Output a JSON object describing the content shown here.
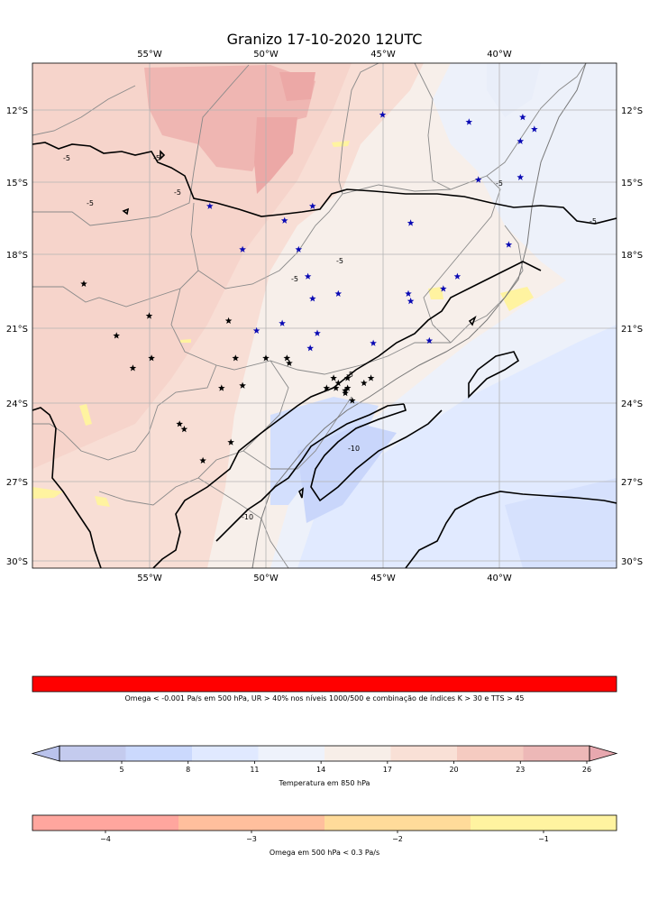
{
  "title": "Granizo 17-10-2020 12UTC",
  "map": {
    "lon_ticks": [
      "55°W",
      "50°W",
      "45°W",
      "40°W"
    ],
    "lat_ticks": [
      "12°S",
      "15°S",
      "18°S",
      "21°S",
      "24°S",
      "27°S",
      "30°S"
    ],
    "contour_labels": [
      "-5",
      "-5",
      "-5",
      "-5",
      "-5",
      "-5",
      "-5",
      "-5",
      "-10",
      "-10",
      "-5"
    ],
    "black_stars": [
      [
        -57.8,
        -19.2
      ],
      [
        -55.0,
        -20.5
      ],
      [
        -56.4,
        -21.3
      ],
      [
        -55.7,
        -22.6
      ],
      [
        -54.9,
        -22.2
      ],
      [
        -53.7,
        -24.8
      ],
      [
        -53.5,
        -25.0
      ],
      [
        -51.9,
        -23.4
      ],
      [
        -51.3,
        -22.2
      ],
      [
        -50.0,
        -22.2
      ],
      [
        -49.1,
        -22.2
      ],
      [
        -49.0,
        -22.4
      ],
      [
        -51.0,
        -23.3
      ],
      [
        -51.6,
        -20.7
      ],
      [
        -51.5,
        -25.5
      ],
      [
        -52.7,
        -26.2
      ],
      [
        -47.4,
        -23.4
      ],
      [
        -47.1,
        -23.0
      ],
      [
        -46.9,
        -23.2
      ],
      [
        -46.6,
        -23.5
      ],
      [
        -46.5,
        -23.4
      ],
      [
        -46.5,
        -23.0
      ],
      [
        -46.3,
        -23.9
      ],
      [
        -45.8,
        -23.2
      ],
      [
        -45.5,
        -23.0
      ],
      [
        -47.0,
        -23.4
      ],
      [
        -46.6,
        -23.6
      ]
    ],
    "blue_stars": [
      [
        -45.0,
        -12.2
      ],
      [
        -41.3,
        -12.5
      ],
      [
        -39.0,
        -12.3
      ],
      [
        -38.5,
        -12.8
      ],
      [
        -39.1,
        -13.3
      ],
      [
        -40.9,
        -14.9
      ],
      [
        -39.1,
        -14.8
      ],
      [
        -52.4,
        -16.0
      ],
      [
        -48.0,
        -16.0
      ],
      [
        -49.2,
        -16.6
      ],
      [
        -43.8,
        -16.7
      ],
      [
        -39.6,
        -17.6
      ],
      [
        -51.0,
        -17.8
      ],
      [
        -48.6,
        -17.8
      ],
      [
        -48.2,
        -18.9
      ],
      [
        -41.8,
        -18.9
      ],
      [
        -42.4,
        -19.4
      ],
      [
        -48.0,
        -19.8
      ],
      [
        -46.9,
        -19.6
      ],
      [
        -43.9,
        -19.6
      ],
      [
        -43.8,
        -19.9
      ],
      [
        -49.3,
        -20.8
      ],
      [
        -50.4,
        -21.1
      ],
      [
        -47.8,
        -21.2
      ],
      [
        -48.1,
        -21.8
      ],
      [
        -45.4,
        -21.6
      ],
      [
        -43.0,
        -21.5
      ]
    ]
  },
  "colorbar_red": {
    "label": "Omega < -0.001 Pa/s em 500 hPa, UR > 40% nos níveis 1000/500 e combinação de índices K > 30 e TTS > 45",
    "color": "#ff0000"
  },
  "colorbar_temp": {
    "label": "Temperatura em 850 hPa",
    "ticks": [
      "5",
      "8",
      "11",
      "14",
      "17",
      "20",
      "23",
      "26"
    ],
    "range": [
      1,
      27
    ],
    "colors": [
      "#c4cbee",
      "#cbd9fd",
      "#e0e9ff",
      "#eef2fb",
      "#f7eee8",
      "#f9e0d6",
      "#f5cbc1",
      "#edb8b7"
    ],
    "extend_low": "#bac3ec",
    "extend_high": "#e8a8af"
  },
  "colorbar_omega": {
    "label": "Omega em 500 hPa < 0.3 Pa/s",
    "ticks": [
      "−4",
      "−3",
      "−2",
      "−1"
    ],
    "range": [
      -4.5,
      -0.5
    ],
    "colors": [
      "#ffa69e",
      "#ffbf9d",
      "#ffdb9a",
      "#fff3a0"
    ]
  }
}
